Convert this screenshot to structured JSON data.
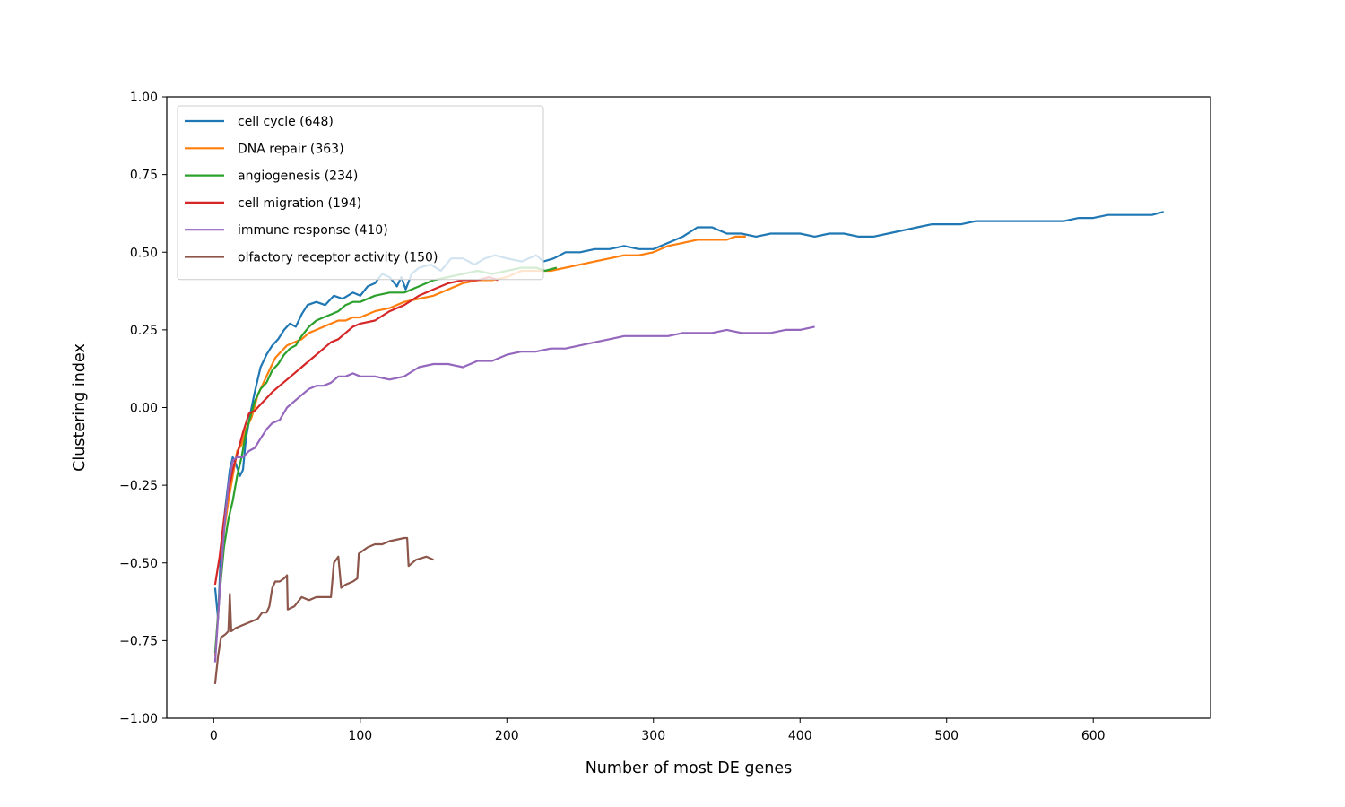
{
  "chart_data": {
    "type": "line",
    "title": "",
    "xlabel": "Number of most DE genes",
    "ylabel": "Clustering index",
    "xlim": [
      -32,
      680
    ],
    "ylim": [
      -1.0,
      1.0
    ],
    "x_ticks": [
      0,
      100,
      200,
      300,
      400,
      500,
      600
    ],
    "y_ticks": [
      -1.0,
      -0.75,
      -0.5,
      -0.25,
      0.0,
      0.25,
      0.5,
      0.75,
      1.0
    ],
    "x_tick_labels": [
      "0",
      "100",
      "200",
      "300",
      "400",
      "500",
      "600"
    ],
    "y_tick_labels": [
      "−1.00",
      "−0.75",
      "−0.50",
      "−0.25",
      "0.00",
      "0.25",
      "0.50",
      "0.75",
      "1.00"
    ],
    "grid": false,
    "legend_position": "top-left",
    "series": [
      {
        "name": "cell cycle (648)",
        "color": "#1f77b4",
        "points": [
          [
            1,
            -0.58
          ],
          [
            3,
            -0.68
          ],
          [
            5,
            -0.45
          ],
          [
            8,
            -0.32
          ],
          [
            11,
            -0.2
          ],
          [
            13,
            -0.16
          ],
          [
            15,
            -0.18
          ],
          [
            18,
            -0.22
          ],
          [
            20,
            -0.2
          ],
          [
            22,
            -0.1
          ],
          [
            25,
            -0.02
          ],
          [
            28,
            0.05
          ],
          [
            32,
            0.13
          ],
          [
            36,
            0.17
          ],
          [
            40,
            0.2
          ],
          [
            44,
            0.22
          ],
          [
            48,
            0.25
          ],
          [
            52,
            0.27
          ],
          [
            56,
            0.26
          ],
          [
            60,
            0.3
          ],
          [
            64,
            0.33
          ],
          [
            70,
            0.34
          ],
          [
            76,
            0.33
          ],
          [
            82,
            0.36
          ],
          [
            88,
            0.35
          ],
          [
            95,
            0.37
          ],
          [
            100,
            0.36
          ],
          [
            105,
            0.39
          ],
          [
            110,
            0.4
          ],
          [
            115,
            0.43
          ],
          [
            120,
            0.42
          ],
          [
            125,
            0.39
          ],
          [
            128,
            0.42
          ],
          [
            131,
            0.38
          ],
          [
            135,
            0.43
          ],
          [
            140,
            0.45
          ],
          [
            148,
            0.46
          ],
          [
            155,
            0.44
          ],
          [
            162,
            0.48
          ],
          [
            170,
            0.48
          ],
          [
            178,
            0.46
          ],
          [
            185,
            0.48
          ],
          [
            192,
            0.49
          ],
          [
            200,
            0.48
          ],
          [
            210,
            0.47
          ],
          [
            220,
            0.49
          ],
          [
            225,
            0.47
          ],
          [
            232,
            0.48
          ],
          [
            240,
            0.5
          ],
          [
            250,
            0.5
          ],
          [
            260,
            0.51
          ],
          [
            270,
            0.51
          ],
          [
            280,
            0.52
          ],
          [
            290,
            0.51
          ],
          [
            300,
            0.51
          ],
          [
            310,
            0.53
          ],
          [
            320,
            0.55
          ],
          [
            330,
            0.58
          ],
          [
            340,
            0.58
          ],
          [
            350,
            0.56
          ],
          [
            360,
            0.56
          ],
          [
            370,
            0.55
          ],
          [
            380,
            0.56
          ],
          [
            390,
            0.56
          ],
          [
            400,
            0.56
          ],
          [
            410,
            0.55
          ],
          [
            420,
            0.56
          ],
          [
            430,
            0.56
          ],
          [
            440,
            0.55
          ],
          [
            450,
            0.55
          ],
          [
            460,
            0.56
          ],
          [
            470,
            0.57
          ],
          [
            480,
            0.58
          ],
          [
            490,
            0.59
          ],
          [
            500,
            0.59
          ],
          [
            510,
            0.59
          ],
          [
            520,
            0.6
          ],
          [
            530,
            0.6
          ],
          [
            540,
            0.6
          ],
          [
            550,
            0.6
          ],
          [
            560,
            0.6
          ],
          [
            570,
            0.6
          ],
          [
            580,
            0.6
          ],
          [
            590,
            0.61
          ],
          [
            600,
            0.61
          ],
          [
            610,
            0.62
          ],
          [
            620,
            0.62
          ],
          [
            630,
            0.62
          ],
          [
            640,
            0.62
          ],
          [
            648,
            0.63
          ]
        ]
      },
      {
        "name": "DNA repair (363)",
        "color": "#ff7f0e",
        "points": [
          [
            1,
            -0.8
          ],
          [
            4,
            -0.6
          ],
          [
            7,
            -0.4
          ],
          [
            10,
            -0.3
          ],
          [
            13,
            -0.22
          ],
          [
            16,
            -0.14
          ],
          [
            19,
            -0.12
          ],
          [
            22,
            -0.07
          ],
          [
            26,
            -0.03
          ],
          [
            30,
            0.04
          ],
          [
            34,
            0.08
          ],
          [
            38,
            0.12
          ],
          [
            42,
            0.16
          ],
          [
            46,
            0.18
          ],
          [
            50,
            0.2
          ],
          [
            55,
            0.21
          ],
          [
            60,
            0.22
          ],
          [
            65,
            0.24
          ],
          [
            70,
            0.25
          ],
          [
            75,
            0.26
          ],
          [
            80,
            0.27
          ],
          [
            85,
            0.28
          ],
          [
            90,
            0.28
          ],
          [
            95,
            0.29
          ],
          [
            100,
            0.29
          ],
          [
            110,
            0.31
          ],
          [
            120,
            0.32
          ],
          [
            130,
            0.34
          ],
          [
            140,
            0.35
          ],
          [
            150,
            0.36
          ],
          [
            160,
            0.38
          ],
          [
            170,
            0.4
          ],
          [
            180,
            0.41
          ],
          [
            190,
            0.41
          ],
          [
            200,
            0.42
          ],
          [
            210,
            0.44
          ],
          [
            220,
            0.44
          ],
          [
            230,
            0.44
          ],
          [
            240,
            0.45
          ],
          [
            250,
            0.46
          ],
          [
            260,
            0.47
          ],
          [
            270,
            0.48
          ],
          [
            280,
            0.49
          ],
          [
            290,
            0.49
          ],
          [
            300,
            0.5
          ],
          [
            310,
            0.52
          ],
          [
            320,
            0.53
          ],
          [
            330,
            0.54
          ],
          [
            340,
            0.54
          ],
          [
            350,
            0.54
          ],
          [
            356,
            0.55
          ],
          [
            363,
            0.55
          ]
        ]
      },
      {
        "name": "angiogenesis (234)",
        "color": "#2ca02c",
        "points": [
          [
            1,
            -0.79
          ],
          [
            4,
            -0.6
          ],
          [
            7,
            -0.45
          ],
          [
            10,
            -0.36
          ],
          [
            13,
            -0.3
          ],
          [
            16,
            -0.22
          ],
          [
            19,
            -0.16
          ],
          [
            22,
            -0.08
          ],
          [
            25,
            -0.03
          ],
          [
            28,
            0.02
          ],
          [
            32,
            0.06
          ],
          [
            36,
            0.08
          ],
          [
            40,
            0.12
          ],
          [
            44,
            0.14
          ],
          [
            48,
            0.17
          ],
          [
            52,
            0.19
          ],
          [
            56,
            0.2
          ],
          [
            60,
            0.23
          ],
          [
            65,
            0.26
          ],
          [
            70,
            0.28
          ],
          [
            75,
            0.29
          ],
          [
            80,
            0.3
          ],
          [
            85,
            0.31
          ],
          [
            90,
            0.33
          ],
          [
            95,
            0.34
          ],
          [
            100,
            0.34
          ],
          [
            110,
            0.36
          ],
          [
            120,
            0.37
          ],
          [
            130,
            0.37
          ],
          [
            140,
            0.39
          ],
          [
            150,
            0.41
          ],
          [
            160,
            0.42
          ],
          [
            170,
            0.43
          ],
          [
            180,
            0.44
          ],
          [
            190,
            0.43
          ],
          [
            200,
            0.44
          ],
          [
            210,
            0.45
          ],
          [
            220,
            0.45
          ],
          [
            226,
            0.44
          ],
          [
            234,
            0.45
          ]
        ]
      },
      {
        "name": "cell migration (194)",
        "color": "#d62728",
        "points": [
          [
            1,
            -0.57
          ],
          [
            4,
            -0.48
          ],
          [
            7,
            -0.36
          ],
          [
            10,
            -0.27
          ],
          [
            13,
            -0.2
          ],
          [
            16,
            -0.15
          ],
          [
            20,
            -0.08
          ],
          [
            24,
            -0.02
          ],
          [
            28,
            -0.01
          ],
          [
            32,
            0.01
          ],
          [
            36,
            0.03
          ],
          [
            40,
            0.05
          ],
          [
            45,
            0.07
          ],
          [
            50,
            0.09
          ],
          [
            55,
            0.11
          ],
          [
            60,
            0.13
          ],
          [
            65,
            0.15
          ],
          [
            70,
            0.17
          ],
          [
            75,
            0.19
          ],
          [
            80,
            0.21
          ],
          [
            85,
            0.22
          ],
          [
            90,
            0.24
          ],
          [
            95,
            0.26
          ],
          [
            100,
            0.27
          ],
          [
            110,
            0.28
          ],
          [
            120,
            0.31
          ],
          [
            130,
            0.33
          ],
          [
            140,
            0.36
          ],
          [
            150,
            0.38
          ],
          [
            160,
            0.4
          ],
          [
            170,
            0.41
          ],
          [
            180,
            0.41
          ],
          [
            188,
            0.42
          ],
          [
            194,
            0.41
          ]
        ]
      },
      {
        "name": "immune response (410)",
        "color": "#9467bd",
        "points": [
          [
            1,
            -0.82
          ],
          [
            4,
            -0.6
          ],
          [
            7,
            -0.4
          ],
          [
            10,
            -0.25
          ],
          [
            13,
            -0.17
          ],
          [
            16,
            -0.16
          ],
          [
            20,
            -0.16
          ],
          [
            24,
            -0.14
          ],
          [
            28,
            -0.13
          ],
          [
            32,
            -0.1
          ],
          [
            36,
            -0.07
          ],
          [
            40,
            -0.05
          ],
          [
            45,
            -0.04
          ],
          [
            50,
            0.0
          ],
          [
            55,
            0.02
          ],
          [
            60,
            0.04
          ],
          [
            65,
            0.06
          ],
          [
            70,
            0.07
          ],
          [
            75,
            0.07
          ],
          [
            80,
            0.08
          ],
          [
            85,
            0.1
          ],
          [
            90,
            0.1
          ],
          [
            95,
            0.11
          ],
          [
            100,
            0.1
          ],
          [
            110,
            0.1
          ],
          [
            120,
            0.09
          ],
          [
            130,
            0.1
          ],
          [
            140,
            0.13
          ],
          [
            150,
            0.14
          ],
          [
            160,
            0.14
          ],
          [
            170,
            0.13
          ],
          [
            180,
            0.15
          ],
          [
            190,
            0.15
          ],
          [
            200,
            0.17
          ],
          [
            210,
            0.18
          ],
          [
            220,
            0.18
          ],
          [
            230,
            0.19
          ],
          [
            240,
            0.19
          ],
          [
            250,
            0.2
          ],
          [
            260,
            0.21
          ],
          [
            270,
            0.22
          ],
          [
            280,
            0.23
          ],
          [
            290,
            0.23
          ],
          [
            300,
            0.23
          ],
          [
            310,
            0.23
          ],
          [
            320,
            0.24
          ],
          [
            330,
            0.24
          ],
          [
            340,
            0.24
          ],
          [
            350,
            0.25
          ],
          [
            360,
            0.24
          ],
          [
            370,
            0.24
          ],
          [
            380,
            0.24
          ],
          [
            390,
            0.25
          ],
          [
            400,
            0.25
          ],
          [
            410,
            0.26
          ]
        ]
      },
      {
        "name": "olfactory receptor activity (150)",
        "color": "#8c564b",
        "points": [
          [
            1,
            -0.89
          ],
          [
            3,
            -0.8
          ],
          [
            5,
            -0.74
          ],
          [
            8,
            -0.73
          ],
          [
            10,
            -0.72
          ],
          [
            11,
            -0.6
          ],
          [
            12,
            -0.72
          ],
          [
            15,
            -0.71
          ],
          [
            20,
            -0.7
          ],
          [
            25,
            -0.69
          ],
          [
            30,
            -0.68
          ],
          [
            33,
            -0.66
          ],
          [
            36,
            -0.66
          ],
          [
            38,
            -0.64
          ],
          [
            40,
            -0.58
          ],
          [
            42,
            -0.56
          ],
          [
            45,
            -0.56
          ],
          [
            48,
            -0.55
          ],
          [
            50,
            -0.54
          ],
          [
            50.5,
            -0.65
          ],
          [
            55,
            -0.64
          ],
          [
            60,
            -0.61
          ],
          [
            65,
            -0.62
          ],
          [
            70,
            -0.61
          ],
          [
            75,
            -0.61
          ],
          [
            80,
            -0.61
          ],
          [
            82,
            -0.5
          ],
          [
            85,
            -0.48
          ],
          [
            87,
            -0.58
          ],
          [
            90,
            -0.57
          ],
          [
            95,
            -0.56
          ],
          [
            98,
            -0.55
          ],
          [
            99,
            -0.47
          ],
          [
            105,
            -0.45
          ],
          [
            110,
            -0.44
          ],
          [
            115,
            -0.44
          ],
          [
            120,
            -0.43
          ],
          [
            130,
            -0.42
          ],
          [
            132,
            -0.42
          ],
          [
            133,
            -0.51
          ],
          [
            138,
            -0.49
          ],
          [
            145,
            -0.48
          ],
          [
            150,
            -0.49
          ]
        ]
      }
    ]
  }
}
